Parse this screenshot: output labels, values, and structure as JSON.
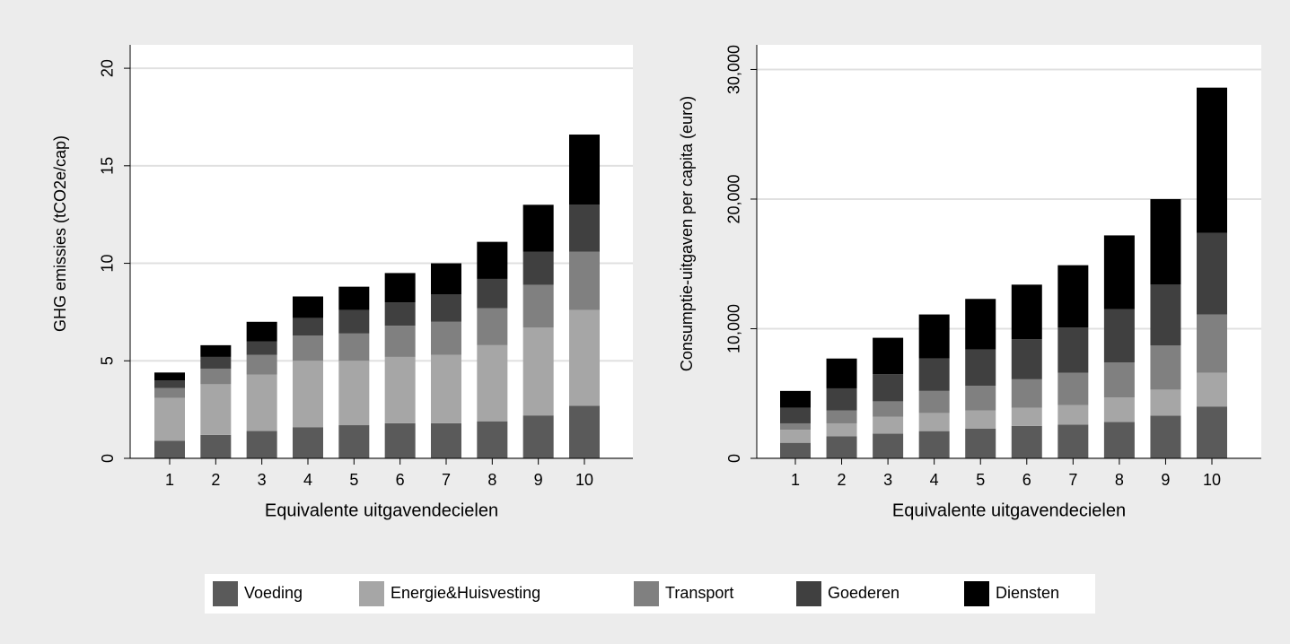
{
  "chart_data": [
    {
      "type": "stacked_bar",
      "xlabel": "Equivalente uitgavendecielen",
      "ylabel": "GHG emissies (tCO2e/cap)",
      "categories": [
        "1",
        "2",
        "3",
        "4",
        "5",
        "6",
        "7",
        "8",
        "9",
        "10"
      ],
      "ylim": [
        0,
        21.2
      ],
      "yticks": [
        0,
        5,
        10,
        15,
        20
      ],
      "grid": true,
      "series": [
        {
          "name": "Voeding",
          "color": "#5a5a5a",
          "values": [
            0.9,
            1.2,
            1.4,
            1.6,
            1.7,
            1.8,
            1.8,
            1.9,
            2.2,
            2.7
          ]
        },
        {
          "name": "Energie&Huisvesting",
          "color": "#a6a6a6",
          "values": [
            2.2,
            2.6,
            2.9,
            3.4,
            3.3,
            3.4,
            3.5,
            3.9,
            4.5,
            4.9
          ]
        },
        {
          "name": "Transport",
          "color": "#808080",
          "values": [
            0.5,
            0.8,
            1.0,
            1.3,
            1.4,
            1.6,
            1.7,
            1.9,
            2.2,
            3.0
          ]
        },
        {
          "name": "Goederen",
          "color": "#404040",
          "values": [
            0.4,
            0.6,
            0.7,
            0.9,
            1.2,
            1.2,
            1.4,
            1.5,
            1.7,
            2.4
          ]
        },
        {
          "name": "Diensten",
          "color": "#000000",
          "values": [
            0.4,
            0.6,
            1.0,
            1.1,
            1.2,
            1.5,
            1.6,
            1.9,
            2.4,
            3.6
          ]
        }
      ]
    },
    {
      "type": "stacked_bar",
      "xlabel": "Equivalente uitgavendecielen",
      "ylabel": "Consumptie-uitgaven per capita (euro)",
      "categories": [
        "1",
        "2",
        "3",
        "4",
        "5",
        "6",
        "7",
        "8",
        "9",
        "10"
      ],
      "ylim": [
        0,
        31900
      ],
      "yticks": [
        0,
        {
          "value": 10000,
          "label": "10,000"
        },
        {
          "value": 20000,
          "label": "20,000"
        },
        {
          "value": 30000,
          "label": "30,000"
        }
      ],
      "grid": true,
      "series": [
        {
          "name": "Voeding",
          "color": "#5a5a5a",
          "values": [
            1200,
            1700,
            1900,
            2100,
            2300,
            2500,
            2600,
            2800,
            3300,
            4000
          ]
        },
        {
          "name": "Energie&Huisvesting",
          "color": "#a6a6a6",
          "values": [
            1000,
            1000,
            1300,
            1400,
            1400,
            1400,
            1500,
            1900,
            2000,
            2600
          ]
        },
        {
          "name": "Transport",
          "color": "#808080",
          "values": [
            500,
            1000,
            1200,
            1700,
            1900,
            2200,
            2500,
            2700,
            3400,
            4500
          ]
        },
        {
          "name": "Goederen",
          "color": "#404040",
          "values": [
            1200,
            1700,
            2100,
            2500,
            2800,
            3100,
            3500,
            4100,
            4700,
            6300
          ]
        },
        {
          "name": "Diensten",
          "color": "#000000",
          "values": [
            1300,
            2300,
            2800,
            3400,
            3900,
            4200,
            4800,
            5700,
            6600,
            11200
          ]
        }
      ]
    }
  ]
}
